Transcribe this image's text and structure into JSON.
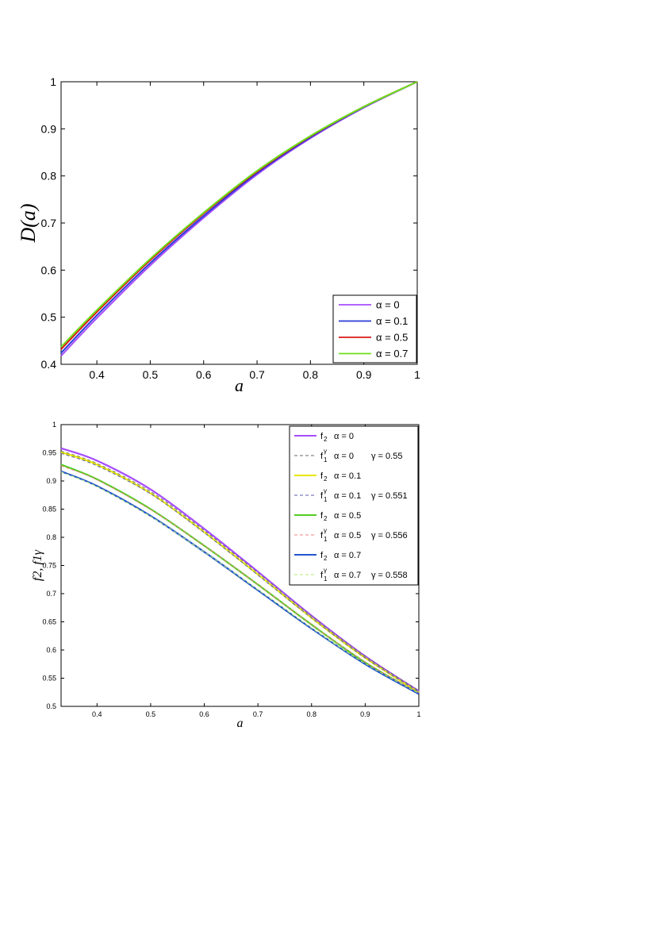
{
  "chart_data": [
    {
      "type": "line",
      "title": "",
      "xlabel": "a",
      "ylabel": "D(a)",
      "xlim": [
        0.333,
        1.0
      ],
      "ylim": [
        0.4,
        1.0
      ],
      "grid": false,
      "legend_position": "bottom-right",
      "x_ticks": [
        0.4,
        0.5,
        0.6,
        0.7,
        0.8,
        0.9,
        1.0
      ],
      "x_tick_labels": [
        "0.4",
        "0.5",
        "0.6",
        "0.7",
        "0.8",
        "0.9",
        "1"
      ],
      "y_ticks": [
        0.4,
        0.5,
        0.6,
        0.7,
        0.8,
        0.9,
        1.0
      ],
      "y_tick_labels": [
        "0.4",
        "0.5",
        "0.6",
        "0.7",
        "0.8",
        "0.9",
        "1"
      ],
      "x": [
        0.333,
        0.4,
        0.5,
        0.6,
        0.7,
        0.8,
        0.9,
        1.0
      ],
      "series": [
        {
          "name": "α = 0",
          "color": "#a64dff",
          "dash": "",
          "values": [
            0.418,
            0.498,
            0.61,
            0.711,
            0.803,
            0.88,
            0.945,
            1.0
          ]
        },
        {
          "name": "α = 0.1",
          "color": "#2a3bd6",
          "dash": "",
          "values": [
            0.424,
            0.504,
            0.615,
            0.715,
            0.806,
            0.882,
            0.946,
            1.0
          ]
        },
        {
          "name": "α = 0.5",
          "color": "#d81818",
          "dash": "",
          "values": [
            0.432,
            0.511,
            0.621,
            0.72,
            0.809,
            0.884,
            0.947,
            1.0
          ]
        },
        {
          "name": "α = 0.7",
          "color": "#6ee01a",
          "dash": "",
          "values": [
            0.437,
            0.515,
            0.624,
            0.722,
            0.811,
            0.885,
            0.947,
            1.0
          ]
        }
      ]
    },
    {
      "type": "line",
      "title": "",
      "xlabel": "a",
      "ylabel": "f2, f1γ",
      "xlim": [
        0.333,
        1.0
      ],
      "ylim": [
        0.5,
        1.0
      ],
      "grid": false,
      "legend_position": "top-right",
      "x_ticks": [
        0.4,
        0.5,
        0.6,
        0.7,
        0.8,
        0.9,
        1.0
      ],
      "x_tick_labels": [
        "0.4",
        "0.5",
        "0.6",
        "0.7",
        "0.8",
        "0.9",
        "1"
      ],
      "y_ticks": [
        0.5,
        0.55,
        0.6,
        0.65,
        0.7,
        0.75,
        0.8,
        0.85,
        0.9,
        0.95,
        1.0
      ],
      "y_tick_labels": [
        "0.5",
        "0.55",
        "0.6",
        "0.65",
        "0.7",
        "0.75",
        "0.8",
        "0.85",
        "0.9",
        "0.95",
        "1"
      ],
      "x": [
        0.333,
        0.4,
        0.5,
        0.6,
        0.7,
        0.8,
        0.9,
        1.0
      ],
      "series": [
        {
          "name": "f2  α = 0",
          "label_main": "α = 0",
          "label_gamma": "",
          "func": "f2",
          "color": "#a64dff",
          "dash": "",
          "width": 2.2,
          "values": [
            0.958,
            0.936,
            0.885,
            0.815,
            0.739,
            0.661,
            0.589,
            0.527
          ]
        },
        {
          "name": "f1γ  α = 0    γ = 0.55",
          "label_main": "α = 0",
          "label_gamma": "γ = 0.55",
          "func": "f1",
          "color": "#666666",
          "dash": "4,3",
          "width": 1.0,
          "values": [
            0.953,
            0.931,
            0.881,
            0.812,
            0.737,
            0.66,
            0.589,
            0.528
          ]
        },
        {
          "name": "f2  α = 0.1",
          "label_main": "α = 0.1",
          "label_gamma": "",
          "func": "f2",
          "color": "#e6e600",
          "dash": "",
          "width": 2.0,
          "values": [
            0.951,
            0.929,
            0.878,
            0.809,
            0.734,
            0.657,
            0.586,
            0.525
          ]
        },
        {
          "name": "f1γ  α = 0.1  γ = 0.551",
          "label_main": "α = 0.1",
          "label_gamma": "γ = 0.551",
          "func": "f1",
          "color": "#5a5aa8",
          "dash": "4,3",
          "width": 1.0,
          "values": [
            0.949,
            0.927,
            0.877,
            0.808,
            0.733,
            0.657,
            0.586,
            0.526
          ]
        },
        {
          "name": "f2  α = 0.5",
          "label_main": "α = 0.5",
          "label_gamma": "",
          "func": "f2",
          "color": "#55cc22",
          "dash": "",
          "width": 2.2,
          "values": [
            0.929,
            0.903,
            0.85,
            0.785,
            0.716,
            0.645,
            0.578,
            0.523
          ]
        },
        {
          "name": "f1γ  α = 0.5  γ = 0.556",
          "label_main": "α = 0.5",
          "label_gamma": "γ = 0.556",
          "func": "f1",
          "color": "#f08080",
          "dash": "4,3",
          "width": 1.0,
          "values": [
            0.927,
            0.902,
            0.849,
            0.785,
            0.716,
            0.645,
            0.579,
            0.524
          ]
        },
        {
          "name": "f2  α = 0.7",
          "label_main": "α = 0.7",
          "label_gamma": "",
          "func": "f2",
          "color": "#2255cc",
          "dash": "",
          "width": 2.2,
          "values": [
            0.917,
            0.891,
            0.838,
            0.774,
            0.706,
            0.638,
            0.575,
            0.522
          ]
        },
        {
          "name": "f1γ  α = 0.7  γ = 0.558",
          "label_main": "α = 0.7",
          "label_gamma": "γ = 0.558",
          "func": "f1",
          "color": "#b4e86e",
          "dash": "4,3",
          "width": 1.0,
          "values": [
            0.916,
            0.89,
            0.837,
            0.774,
            0.707,
            0.639,
            0.576,
            0.523
          ]
        }
      ]
    }
  ]
}
